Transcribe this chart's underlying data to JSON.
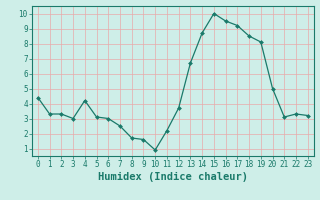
{
  "x": [
    0,
    1,
    2,
    3,
    4,
    5,
    6,
    7,
    8,
    9,
    10,
    11,
    12,
    13,
    14,
    15,
    16,
    17,
    18,
    19,
    20,
    21,
    22,
    23
  ],
  "y": [
    4.4,
    3.3,
    3.3,
    3.0,
    4.2,
    3.1,
    3.0,
    2.5,
    1.7,
    1.6,
    0.9,
    2.2,
    3.7,
    6.7,
    8.7,
    10.0,
    9.5,
    9.2,
    8.5,
    8.1,
    5.0,
    3.1,
    3.3,
    3.2
  ],
  "line_color": "#1a7a6a",
  "marker": "D",
  "marker_size": 2.0,
  "bg_color": "#ceeee8",
  "grid_color": "#e8aaaa",
  "xlabel": "Humidex (Indice chaleur)",
  "xlim": [
    -0.5,
    23.5
  ],
  "ylim": [
    0.5,
    10.5
  ],
  "yticks": [
    1,
    2,
    3,
    4,
    5,
    6,
    7,
    8,
    9,
    10
  ],
  "xticks": [
    0,
    1,
    2,
    3,
    4,
    5,
    6,
    7,
    8,
    9,
    10,
    11,
    12,
    13,
    14,
    15,
    16,
    17,
    18,
    19,
    20,
    21,
    22,
    23
  ],
  "tick_fontsize": 5.5,
  "label_fontsize": 7.5
}
